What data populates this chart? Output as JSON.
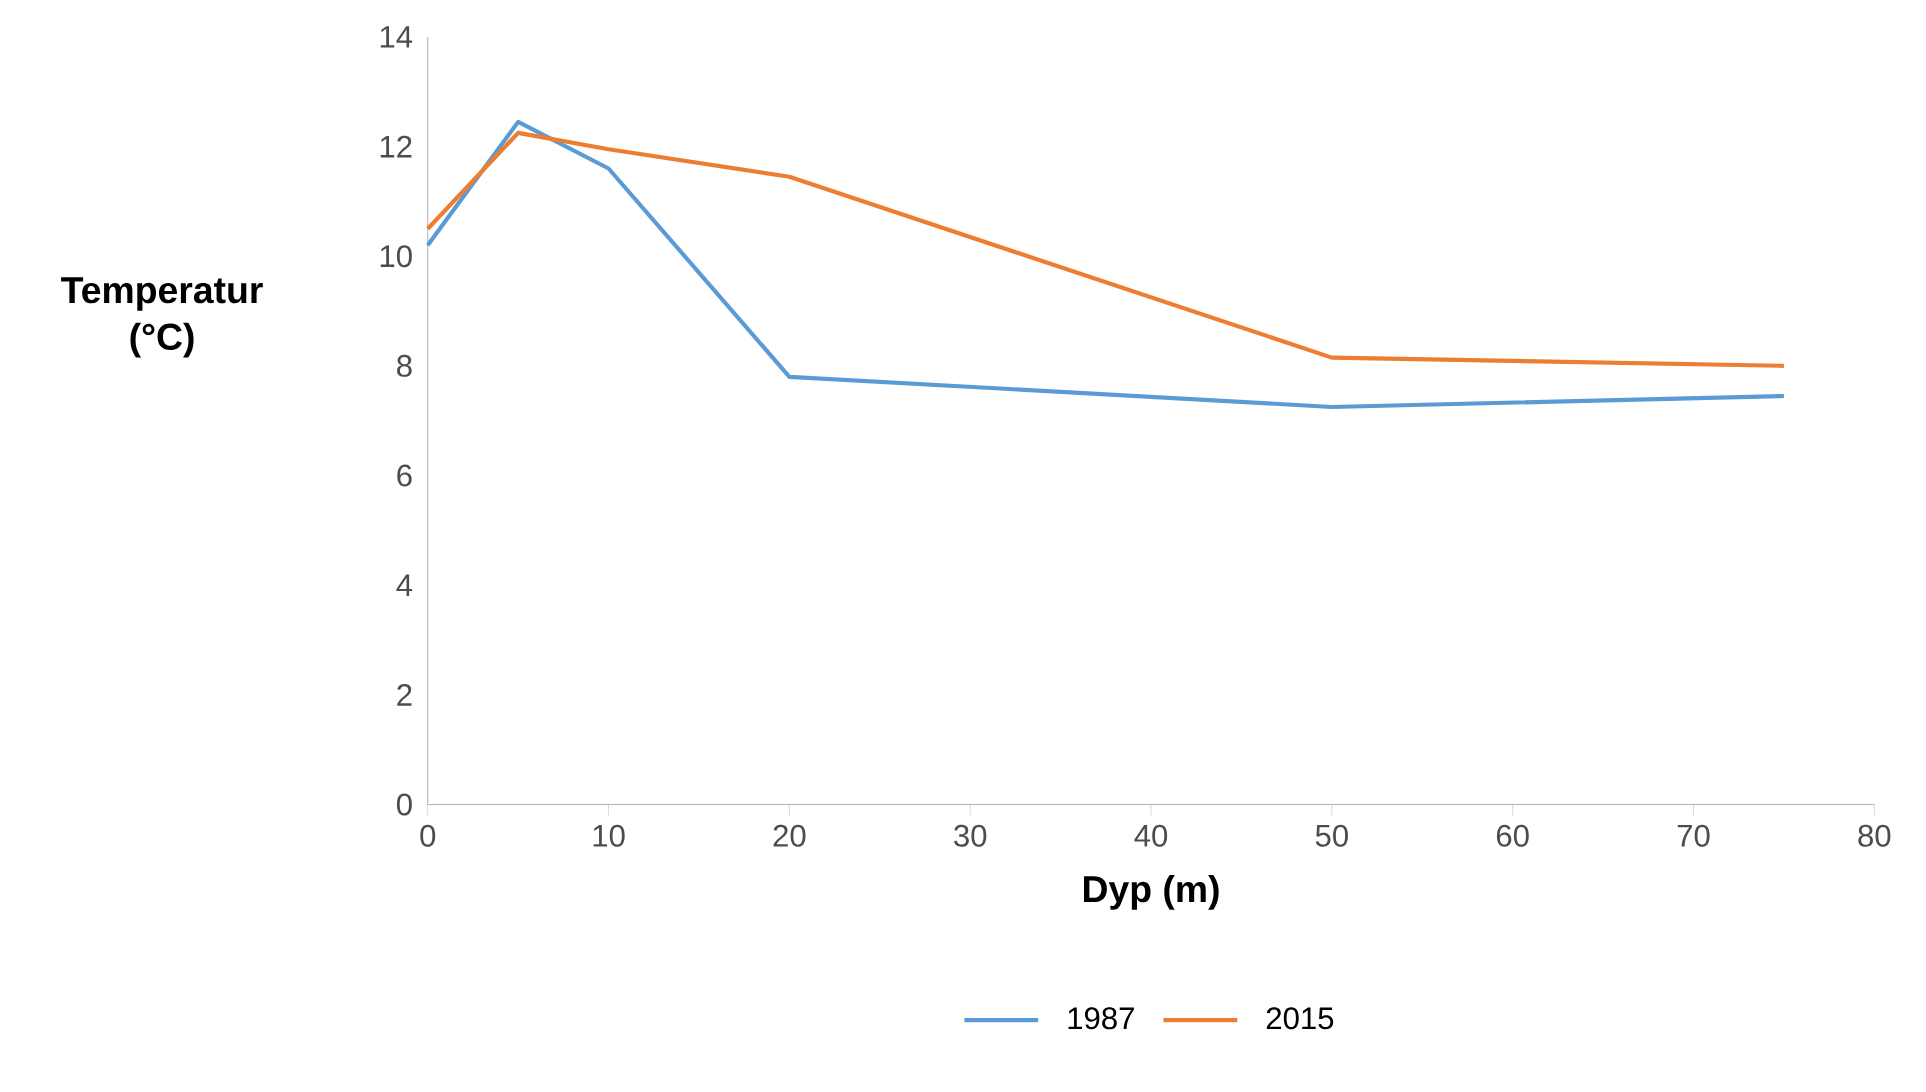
{
  "chart_data": {
    "type": "line",
    "xlabel": "Dyp (m)",
    "ylabel": "Temperatur (°C)",
    "xlim": [
      0,
      80
    ],
    "xticks": [
      0,
      10,
      20,
      30,
      40,
      50,
      60,
      70,
      80
    ],
    "ylim": [
      0,
      14
    ],
    "yticks": [
      0,
      2,
      4,
      6,
      8,
      10,
      12,
      14
    ],
    "grid": false,
    "legend": "bottom",
    "marker": "none",
    "line_style": "solid",
    "series": [
      {
        "name": "1987",
        "color": "#5b9bd5",
        "x": [
          0,
          5,
          10,
          20,
          50,
          75
        ],
        "values": [
          10.2,
          12.45,
          11.6,
          7.8,
          7.25,
          7.45
        ]
      },
      {
        "name": "2015",
        "color": "#ed7d31",
        "x": [
          0,
          5,
          10,
          20,
          50,
          75
        ],
        "values": [
          10.5,
          12.25,
          11.95,
          11.45,
          8.15,
          8.0
        ]
      }
    ]
  }
}
